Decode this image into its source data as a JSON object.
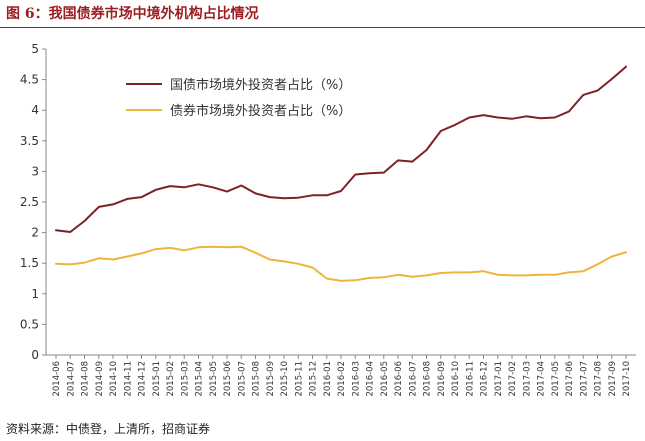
{
  "header": {
    "title": "图 6：我国债券市场中境外机构占比情况"
  },
  "footer": {
    "source": "资料来源：中债登，上清所，招商证券"
  },
  "colors": {
    "series_0": "#7b2226",
    "series_1": "#f0b43a",
    "title": "#9c1e22"
  },
  "chart_data": {
    "type": "line",
    "title": "图 6：我国债券市场中境外机构占比情况",
    "xlabel": "",
    "ylabel": "",
    "ylim": [
      0,
      5
    ],
    "yticks": [
      "0",
      "0.5",
      "1",
      "1.5",
      "2",
      "2.5",
      "3",
      "3.5",
      "4",
      "4.5",
      "5"
    ],
    "grid": false,
    "legend": "top-left",
    "x": [
      "2014-06",
      "2014-07",
      "2014-08",
      "2014-09",
      "2014-10",
      "2014-11",
      "2014-12",
      "2015-01",
      "2015-02",
      "2015-03",
      "2015-04",
      "2015-05",
      "2015-06",
      "2015-07",
      "2015-08",
      "2015-09",
      "2015-10",
      "2015-11",
      "2015-12",
      "2016-01",
      "2016-02",
      "2016-03",
      "2016-04",
      "2016-05",
      "2016-06",
      "2016-07",
      "2016-08",
      "2016-09",
      "2016-10",
      "2016-11",
      "2016-12",
      "2017-01",
      "2017-02",
      "2017-03",
      "2017-04",
      "2017-05",
      "2017-06",
      "2017-07",
      "2017-08",
      "2017-09",
      "2017-10"
    ],
    "series": [
      {
        "name": "国债市场境外投资者占比（%）",
        "values": [
          2.04,
          2.01,
          2.19,
          2.42,
          2.46,
          2.55,
          2.58,
          2.7,
          2.76,
          2.74,
          2.79,
          2.74,
          2.67,
          2.77,
          2.64,
          2.58,
          2.56,
          2.57,
          2.61,
          2.61,
          2.68,
          2.95,
          2.97,
          2.98,
          3.18,
          3.16,
          3.35,
          3.66,
          3.76,
          3.88,
          3.92,
          3.88,
          3.86,
          3.9,
          3.87,
          3.88,
          3.98,
          4.25,
          4.32,
          4.51,
          4.71
        ]
      },
      {
        "name": "债券市场境外投资者占比（%）",
        "values": [
          1.49,
          1.48,
          1.51,
          1.58,
          1.56,
          1.61,
          1.66,
          1.73,
          1.75,
          1.71,
          1.76,
          1.77,
          1.76,
          1.77,
          1.67,
          1.56,
          1.53,
          1.49,
          1.43,
          1.25,
          1.21,
          1.22,
          1.26,
          1.27,
          1.31,
          1.28,
          1.3,
          1.34,
          1.35,
          1.35,
          1.37,
          1.31,
          1.3,
          1.3,
          1.31,
          1.31,
          1.35,
          1.37,
          1.48,
          1.61,
          1.68
        ]
      }
    ]
  }
}
